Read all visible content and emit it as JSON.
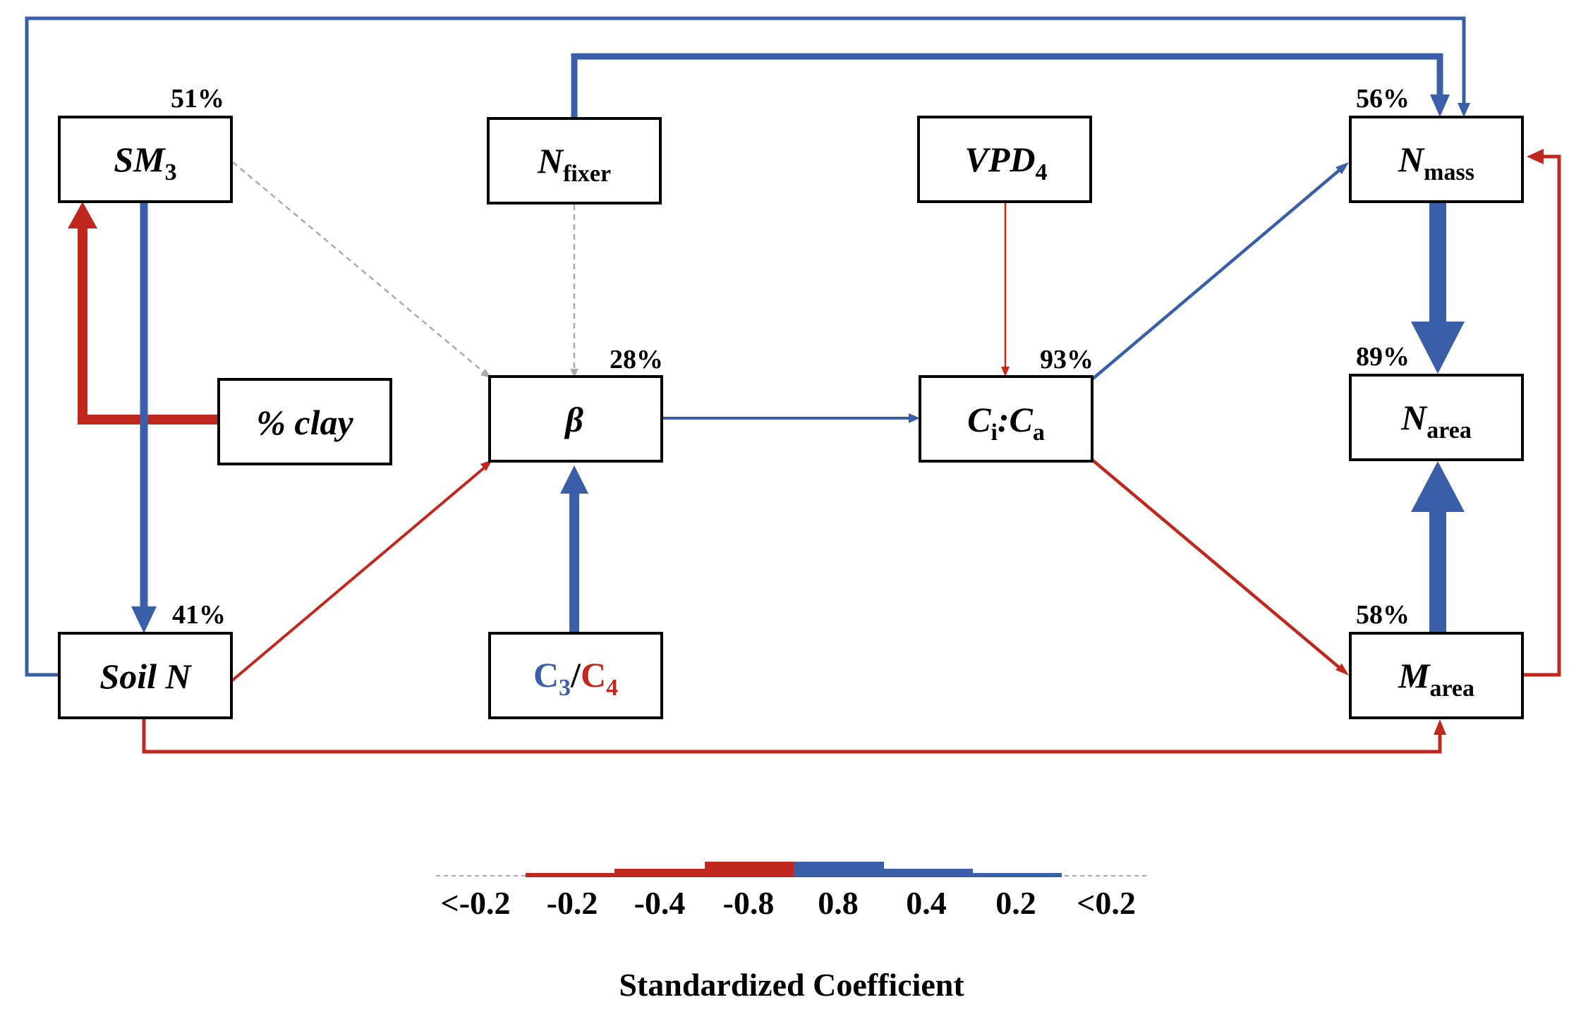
{
  "colors": {
    "positive": "#3a5fa8",
    "negative": "#c0281e",
    "nonsignificant": "#aaaaaa"
  },
  "nodes": [
    {
      "id": "sm3",
      "main": "SM",
      "sub": "3",
      "pct": "51%"
    },
    {
      "id": "nfixer",
      "main": "N",
      "sub": "fixer",
      "pct": ""
    },
    {
      "id": "vpd4",
      "main": "VPD",
      "sub": "4",
      "pct": ""
    },
    {
      "id": "nmass",
      "main": "N",
      "sub": "mass",
      "pct": "56%"
    },
    {
      "id": "clay",
      "main": "% clay",
      "sub": "",
      "pct": ""
    },
    {
      "id": "beta",
      "main": "β",
      "sub": "",
      "pct": "28%"
    },
    {
      "id": "cica",
      "main": "C",
      "sub": "i",
      "main2": ":C",
      "sub2": "a",
      "pct": "93%"
    },
    {
      "id": "narea",
      "main": "N",
      "sub": "area",
      "pct": "89%"
    },
    {
      "id": "soiln",
      "main": "Soil N",
      "sub": "",
      "pct": "41%"
    },
    {
      "id": "c3c4",
      "c3": "C",
      "c3sub": "3",
      "slash": "/",
      "c4": "C",
      "c4sub": "4",
      "pct": ""
    },
    {
      "id": "marea",
      "main": "M",
      "sub": "area",
      "pct": "58%"
    }
  ],
  "edges": [
    {
      "from": "clay",
      "to": "sm3",
      "sign": "negative",
      "coefficient": 0.8
    },
    {
      "from": "sm3",
      "to": "soiln",
      "sign": "positive",
      "coefficient": 0.4
    },
    {
      "from": "sm3",
      "to": "beta",
      "sign": "nonsignificant",
      "coefficient": 0.1
    },
    {
      "from": "nfixer",
      "to": "beta",
      "sign": "nonsignificant",
      "coefficient": 0.1
    },
    {
      "from": "soiln",
      "to": "beta",
      "sign": "negative",
      "coefficient": 0.2
    },
    {
      "from": "c3c4",
      "to": "beta",
      "sign": "positive",
      "coefficient": 0.8
    },
    {
      "from": "beta",
      "to": "cica",
      "sign": "positive",
      "coefficient": 0.2
    },
    {
      "from": "vpd4",
      "to": "cica",
      "sign": "negative",
      "coefficient": 0.15
    },
    {
      "from": "cica",
      "to": "nmass",
      "sign": "positive",
      "coefficient": 0.3
    },
    {
      "from": "cica",
      "to": "marea",
      "sign": "negative",
      "coefficient": 0.3
    },
    {
      "from": "nfixer",
      "to": "nmass",
      "sign": "positive",
      "coefficient": 0.4
    },
    {
      "from": "soiln",
      "to": "nmass",
      "sign": "positive",
      "coefficient": 0.3
    },
    {
      "from": "soiln",
      "to": "marea",
      "sign": "negative",
      "coefficient": 0.3
    },
    {
      "from": "nmass",
      "to": "narea",
      "sign": "positive",
      "coefficient": 0.9
    },
    {
      "from": "marea",
      "to": "narea",
      "sign": "positive",
      "coefficient": 0.9
    },
    {
      "from": "marea",
      "to": "nmass",
      "sign": "negative",
      "coefficient": 0.3
    }
  ],
  "legend": {
    "ticks": [
      "<-0.2",
      "-0.2",
      "-0.4",
      "-0.8",
      "0.8",
      "0.4",
      "0.2",
      "<0.2"
    ],
    "title": "Standardized Coefficient"
  }
}
